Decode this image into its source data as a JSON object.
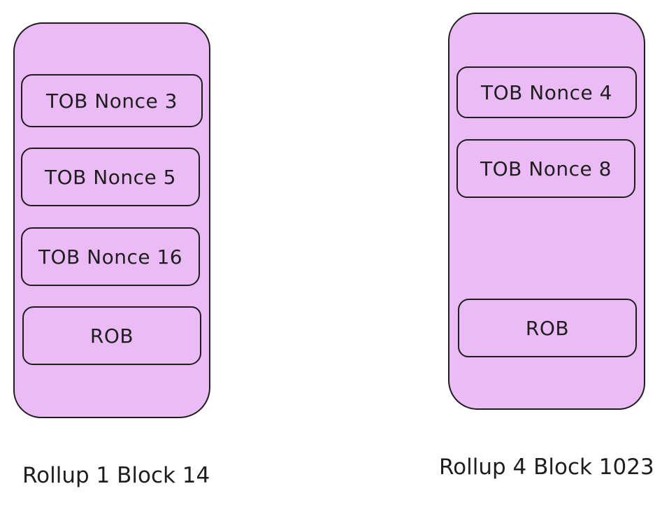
{
  "blocks": [
    {
      "label": "Rollup 1 Block 14",
      "transactions": [
        "TOB Nonce 3",
        "TOB Nonce 5",
        "TOB Nonce 16",
        "ROB"
      ]
    },
    {
      "label": "Rollup 4 Block 1023",
      "transactions": [
        "TOB Nonce 4",
        "TOB Nonce 8",
        "ROB"
      ]
    }
  ],
  "colors": {
    "block_fill": "#ebbbf6",
    "stroke": "#1e1e1e",
    "background": "#ffffff"
  }
}
